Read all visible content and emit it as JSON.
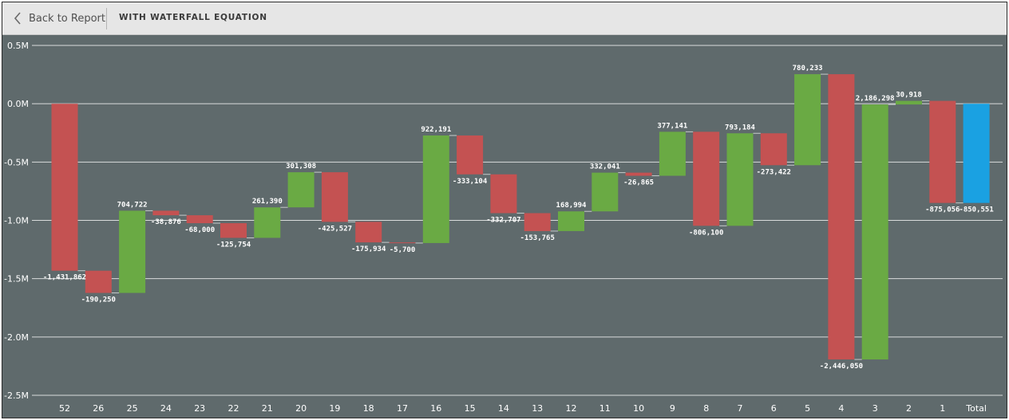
{
  "header": {
    "back_label": "Back to Report",
    "title": "WITH WATERFALL EQUATION"
  },
  "icons": {
    "back": "chevron-left-icon"
  },
  "colors": {
    "increase": "#6aaa44",
    "decrease": "#c45252",
    "total": "#1aa1e2",
    "background": "#5f6a6c",
    "gridline": "#d9dcdc"
  },
  "chart_data": {
    "type": "bar",
    "subtype": "waterfall",
    "categories": [
      "52",
      "26",
      "25",
      "24",
      "23",
      "22",
      "21",
      "20",
      "19",
      "18",
      "17",
      "16",
      "15",
      "14",
      "13",
      "12",
      "11",
      "10",
      "9",
      "8",
      "7",
      "6",
      "5",
      "4",
      "3",
      "2",
      "1",
      "Total"
    ],
    "values": [
      -1431862,
      -190250,
      704722,
      -38876,
      -68000,
      -125754,
      261390,
      301308,
      -425527,
      -175934,
      -5700,
      922191,
      -333104,
      -332707,
      -153765,
      168994,
      332041,
      -26865,
      377141,
      -806100,
      793184,
      -273422,
      780233,
      -2446050,
      2186298,
      30918,
      -875056,
      -850551
    ],
    "data_labels": [
      "-1,431,862",
      "-190,250",
      "704,722",
      "-38,876",
      "-68,000",
      "-125,754",
      "261,390",
      "301,308",
      "-425,527",
      "-175,934",
      "-5,700",
      "922,191",
      "-333,104",
      "-332,707",
      "-153,765",
      "168,994",
      "332,041",
      "-26,865",
      "377,141",
      "-806,100",
      "793,184",
      "-273,422",
      "780,233",
      "-2,446,050",
      "2,186,298",
      "30,918",
      "-875,056",
      "-850,551"
    ],
    "total_index": 27,
    "yticks": [
      0.5,
      0.0,
      -0.5,
      -1.0,
      -1.5,
      -2.0,
      -2.5
    ],
    "ytick_labels": [
      "0.5M",
      "0.0M",
      "-0.5M",
      "-1.0M",
      "-1.5M",
      "-2.0M",
      "-2.5M"
    ],
    "ylim": [
      -2500000,
      500000
    ],
    "grid": true,
    "legend": "none",
    "title": "",
    "xlabel": "",
    "ylabel": ""
  }
}
